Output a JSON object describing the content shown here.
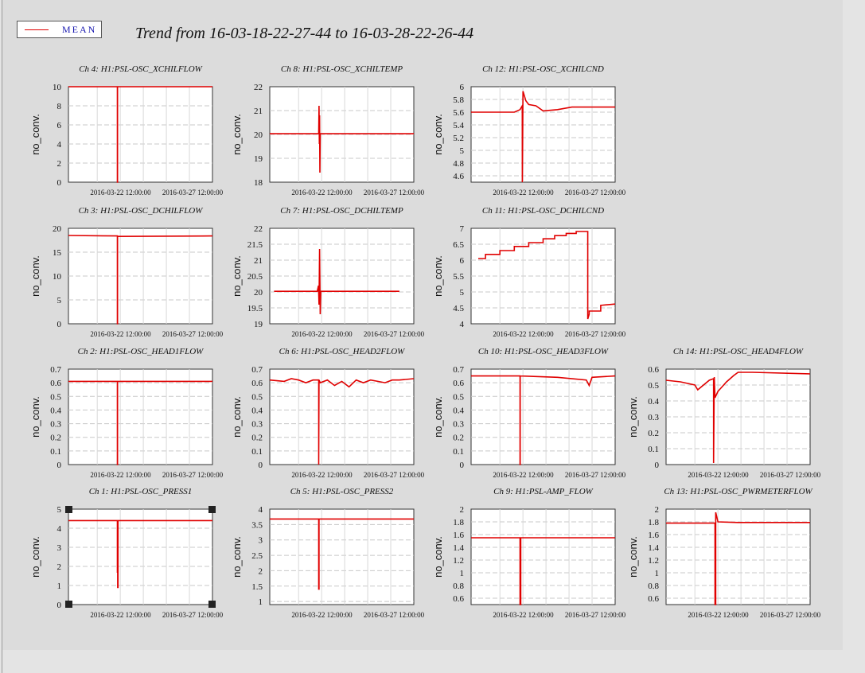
{
  "title": "Trend from 16-03-18-22-27-44 to 16-03-28-22-26-44",
  "legend": {
    "label": "MEAN",
    "color": "#e00000"
  },
  "colors": {
    "series": "#e00000",
    "panel": "#dcdcdc",
    "plot_bg": "#ffffff",
    "grid": "#c8c8c8"
  },
  "chart_data": [
    {
      "type": "line",
      "title": "Ch 4: H1:PSL-OSC_XCHILFLOW",
      "ylabel": "no_conv.",
      "yticks": [
        "0",
        "2",
        "4",
        "6",
        "8",
        "10"
      ],
      "xtick_labels": [
        "2016-03-22 12:00:00",
        "2016-03-27 12:00:00"
      ],
      "ylim": [
        0,
        10
      ],
      "x": [
        0,
        0.34,
        0.34,
        0.341,
        0.341,
        1
      ],
      "values": [
        10,
        10,
        0,
        0,
        10,
        10
      ],
      "series": [
        {
          "name": "MEAN"
        }
      ]
    },
    {
      "type": "line",
      "title": "Ch 8: H1:PSL-OSC_XCHILTEMP",
      "ylabel": "no_conv.",
      "yticks": [
        "18",
        "19",
        "20",
        "21",
        "22"
      ],
      "xtick_labels": [
        "2016-03-22 12:00:00",
        "2016-03-27 12:00:00"
      ],
      "ylim": [
        18,
        22
      ],
      "x": [
        0,
        0.34,
        0.342,
        0.344,
        0.346,
        0.348,
        0.35,
        1
      ],
      "values": [
        20.03,
        20.03,
        21.2,
        19.6,
        20.8,
        18.4,
        20.03,
        20.03
      ],
      "series": [
        {
          "name": "MEAN"
        }
      ]
    },
    {
      "type": "line",
      "title": "Ch 12: H1:PSL-OSC_XCHILCND",
      "ylabel": "no_conv.",
      "yticks": [
        "4.6",
        "4.8",
        "5",
        "5.2",
        "5.4",
        "5.6",
        "5.8",
        "6"
      ],
      "xtick_labels": [
        "2016-03-22 12:00:00",
        "2016-03-27 12:00:00"
      ],
      "ylim": [
        4.5,
        6
      ],
      "x": [
        0,
        0.3,
        0.34,
        0.355,
        0.356,
        0.36,
        0.38,
        0.4,
        0.45,
        0.5,
        0.6,
        0.7,
        1
      ],
      "values": [
        5.6,
        5.6,
        5.64,
        5.7,
        4.5,
        5.93,
        5.78,
        5.72,
        5.7,
        5.62,
        5.64,
        5.68,
        5.68
      ],
      "series": [
        {
          "name": "MEAN"
        }
      ]
    },
    {
      "type": "line",
      "title": "Ch 3: H1:PSL-OSC_DCHILFLOW",
      "ylabel": "no_conv.",
      "yticks": [
        "0",
        "5",
        "10",
        "15",
        "20"
      ],
      "xtick_labels": [
        "2016-03-22 12:00:00",
        "2016-03-27 12:00:00"
      ],
      "ylim": [
        0,
        20
      ],
      "x": [
        0,
        0.34,
        0.34,
        0.341,
        0.341,
        1
      ],
      "values": [
        18.5,
        18.4,
        0,
        0,
        18.3,
        18.4
      ],
      "series": [
        {
          "name": "MEAN"
        }
      ]
    },
    {
      "type": "line",
      "title": "Ch 7: H1:PSL-OSC_DCHILTEMP",
      "ylabel": "no_conv.",
      "yticks": [
        "19",
        "19.5",
        "20",
        "20.5",
        "21",
        "21.5",
        "22"
      ],
      "xtick_labels": [
        "2016-03-22 12:00:00",
        "2016-03-27 12:00:00"
      ],
      "ylim": [
        19,
        22
      ],
      "x": [
        0.03,
        0.33,
        0.338,
        0.342,
        0.346,
        0.35,
        0.354,
        0.9
      ],
      "values": [
        20.02,
        20.02,
        20.2,
        19.6,
        21.35,
        19.3,
        20.02,
        20.02
      ],
      "series": [
        {
          "name": "MEAN"
        }
      ]
    },
    {
      "type": "line",
      "title": "Ch 11: H1:PSL-OSC_DCHILCND",
      "ylabel": "no_conv.",
      "yticks": [
        "4",
        "4.5",
        "5",
        "5.5",
        "6",
        "6.5",
        "7"
      ],
      "xtick_labels": [
        "2016-03-22 12:00:00",
        "2016-03-27 12:00:00"
      ],
      "ylim": [
        4,
        7
      ],
      "x": [
        0.05,
        0.1,
        0.1,
        0.2,
        0.2,
        0.3,
        0.3,
        0.4,
        0.4,
        0.5,
        0.5,
        0.58,
        0.58,
        0.66,
        0.66,
        0.73,
        0.73,
        0.81,
        0.81,
        0.82,
        0.82,
        0.9,
        0.9,
        1
      ],
      "values": [
        6.05,
        6.05,
        6.18,
        6.18,
        6.3,
        6.3,
        6.43,
        6.43,
        6.55,
        6.55,
        6.67,
        6.67,
        6.77,
        6.77,
        6.84,
        6.84,
        6.9,
        6.9,
        4.15,
        4.3,
        4.4,
        4.4,
        4.58,
        4.62
      ],
      "series": [
        {
          "name": "MEAN"
        }
      ]
    },
    {
      "type": "line",
      "title": "Ch 2: H1:PSL-OSC_HEAD1FLOW",
      "ylabel": "no_conv.",
      "yticks": [
        "0",
        "0.1",
        "0.2",
        "0.3",
        "0.4",
        "0.5",
        "0.6",
        "0.7"
      ],
      "xtick_labels": [
        "2016-03-22 12:00:00",
        "2016-03-27 12:00:00"
      ],
      "ylim": [
        0,
        0.7
      ],
      "x": [
        0,
        0.34,
        0.34,
        0.341,
        0.341,
        1
      ],
      "values": [
        0.61,
        0.61,
        0,
        0,
        0.61,
        0.61
      ],
      "series": [
        {
          "name": "MEAN"
        }
      ]
    },
    {
      "type": "line",
      "title": "Ch 6: H1:PSL-OSC_HEAD2FLOW",
      "ylabel": "no_conv.",
      "yticks": [
        "0",
        "0.1",
        "0.2",
        "0.3",
        "0.4",
        "0.5",
        "0.6",
        "0.7"
      ],
      "xtick_labels": [
        "2016-03-22 12:00:00",
        "2016-03-27 12:00:00"
      ],
      "ylim": [
        0,
        0.7
      ],
      "x": [
        0,
        0.1,
        0.15,
        0.2,
        0.25,
        0.3,
        0.34,
        0.34,
        0.342,
        0.35,
        0.4,
        0.45,
        0.5,
        0.55,
        0.6,
        0.65,
        0.7,
        0.75,
        0.8,
        0.85,
        0.9,
        1
      ],
      "values": [
        0.62,
        0.61,
        0.63,
        0.62,
        0.6,
        0.62,
        0.62,
        0,
        0.62,
        0.6,
        0.62,
        0.58,
        0.61,
        0.57,
        0.62,
        0.6,
        0.62,
        0.61,
        0.6,
        0.62,
        0.62,
        0.63
      ],
      "series": [
        {
          "name": "MEAN"
        }
      ]
    },
    {
      "type": "line",
      "title": "Ch 10: H1:PSL-OSC_HEAD3FLOW",
      "ylabel": "no_conv.",
      "yticks": [
        "0",
        "0.1",
        "0.2",
        "0.3",
        "0.4",
        "0.5",
        "0.6",
        "0.7"
      ],
      "xtick_labels": [
        "2016-03-22 12:00:00",
        "2016-03-27 12:00:00"
      ],
      "ylim": [
        0,
        0.7
      ],
      "x": [
        0,
        0.34,
        0.34,
        0.341,
        0.341,
        0.6,
        0.8,
        0.82,
        0.84,
        1
      ],
      "values": [
        0.65,
        0.65,
        0,
        0,
        0.65,
        0.64,
        0.62,
        0.58,
        0.64,
        0.65
      ],
      "series": [
        {
          "name": "MEAN"
        }
      ]
    },
    {
      "type": "line",
      "title": "Ch 14: H1:PSL-OSC_HEAD4FLOW",
      "ylabel": "no_conv.",
      "yticks": [
        "0",
        "0.1",
        "0.2",
        "0.3",
        "0.4",
        "0.5",
        "0.6"
      ],
      "xtick_labels": [
        "2016-03-22 12:00:00",
        "2016-03-27 12:00:00"
      ],
      "ylim": [
        0,
        0.6
      ],
      "x": [
        0,
        0.1,
        0.2,
        0.22,
        0.3,
        0.33,
        0.33,
        0.335,
        0.34,
        0.36,
        0.38,
        0.42,
        0.47,
        0.5,
        0.55,
        0.6,
        1
      ],
      "values": [
        0.53,
        0.52,
        0.5,
        0.47,
        0.53,
        0.54,
        0.01,
        0.55,
        0.42,
        0.46,
        0.48,
        0.52,
        0.56,
        0.58,
        0.58,
        0.58,
        0.57
      ],
      "series": [
        {
          "name": "MEAN"
        }
      ]
    },
    {
      "type": "line",
      "title": "Ch 1: H1:PSL-OSC_PRESS1",
      "ylabel": "no_conv.",
      "yticks": [
        "0",
        "1",
        "2",
        "3",
        "4",
        "5"
      ],
      "xtick_labels": [
        "2016-03-22 12:00:00",
        "2016-03-27 12:00:00"
      ],
      "ylim": [
        0,
        5
      ],
      "x": [
        0,
        0.34,
        0.34,
        0.342,
        0.342,
        0.344,
        0.344,
        1
      ],
      "values": [
        4.4,
        4.4,
        1.7,
        1.7,
        0.9,
        0.9,
        4.4,
        4.4
      ],
      "series": [
        {
          "name": "MEAN"
        }
      ]
    },
    {
      "type": "line",
      "title": "Ch 5: H1:PSL-OSC_PRESS2",
      "ylabel": "no_conv.",
      "yticks": [
        "1",
        "1.5",
        "2",
        "2.5",
        "3",
        "3.5",
        "4"
      ],
      "xtick_labels": [
        "2016-03-22 12:00:00",
        "2016-03-27 12:00:00"
      ],
      "ylim": [
        0.9,
        4
      ],
      "x": [
        0,
        0.34,
        0.34,
        0.342,
        0.342,
        1
      ],
      "values": [
        3.68,
        3.68,
        1.4,
        1.4,
        3.68,
        3.68
      ],
      "series": [
        {
          "name": "MEAN"
        }
      ]
    },
    {
      "type": "line",
      "title": "Ch 9: H1:PSL-AMP_FLOW",
      "ylabel": "no_conv.",
      "yticks": [
        "0.6",
        "0.8",
        "1",
        "1.2",
        "1.4",
        "1.6",
        "1.8",
        "2"
      ],
      "xtick_labels": [
        "2016-03-22 12:00:00",
        "2016-03-27 12:00:00"
      ],
      "ylim": [
        0.5,
        2
      ],
      "x": [
        0,
        0.34,
        0.34,
        0.345,
        0.345,
        1
      ],
      "values": [
        1.55,
        1.55,
        0.5,
        0.5,
        1.55,
        1.55
      ],
      "series": [
        {
          "name": "MEAN"
        }
      ]
    },
    {
      "type": "line",
      "title": "Ch 13: H1:PSL-OSC_PWRMETERFLOW",
      "ylabel": "no_conv.",
      "yticks": [
        "0.6",
        "0.8",
        "1",
        "1.2",
        "1.4",
        "1.6",
        "1.8",
        "2"
      ],
      "xtick_labels": [
        "2016-03-22 12:00:00",
        "2016-03-27 12:00:00"
      ],
      "ylim": [
        0.5,
        2
      ],
      "x": [
        0,
        0.34,
        0.34,
        0.345,
        0.345,
        0.36,
        0.5,
        1
      ],
      "values": [
        1.78,
        1.78,
        0.5,
        0.5,
        1.95,
        1.8,
        1.79,
        1.79
      ],
      "series": [
        {
          "name": "MEAN"
        }
      ]
    }
  ]
}
